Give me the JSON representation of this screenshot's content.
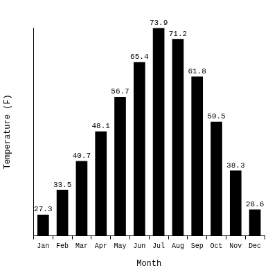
{
  "chart_data": {
    "type": "bar",
    "x_label": "Month",
    "y_label": "Temperature (F)",
    "categories": [
      "Jan",
      "Feb",
      "Mar",
      "Apr",
      "May",
      "Jun",
      "Jul",
      "Aug",
      "Sep",
      "Oct",
      "Nov",
      "Dec"
    ],
    "values": [
      27.3,
      33.5,
      40.7,
      48.1,
      56.7,
      65.4,
      73.9,
      71.2,
      61.8,
      50.5,
      38.3,
      28.6
    ],
    "color": "#000000",
    "ylim": [
      22,
      74
    ],
    "grid": false,
    "data_labels": true,
    "tick_labels": "x"
  }
}
